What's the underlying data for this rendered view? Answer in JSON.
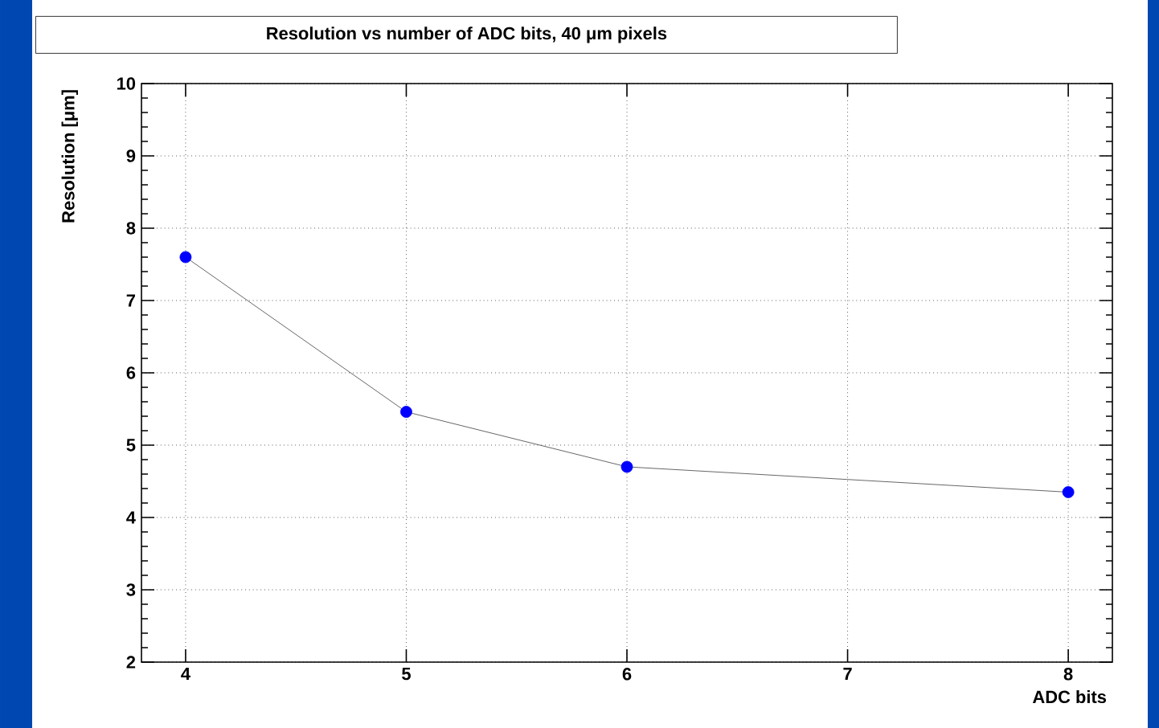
{
  "chart_data": {
    "type": "line",
    "title": "Resolution vs number of ADC bits, 40 μm pixels",
    "xlabel": "ADC bits",
    "ylabel": "Resolution [μm]",
    "x": [
      4,
      5,
      6,
      8
    ],
    "series": [
      {
        "color": "#0000ff",
        "values": [
          7.6,
          5.46,
          4.7,
          4.35
        ]
      }
    ],
    "xlim": [
      3.8,
      8.2
    ],
    "ylim": [
      2,
      10
    ],
    "xticks": [
      4,
      5,
      6,
      7,
      8
    ],
    "yticks": [
      2,
      3,
      4,
      5,
      6,
      7,
      8,
      9,
      10
    ],
    "grid": true,
    "marker": "circle",
    "line_style": "solid"
  }
}
